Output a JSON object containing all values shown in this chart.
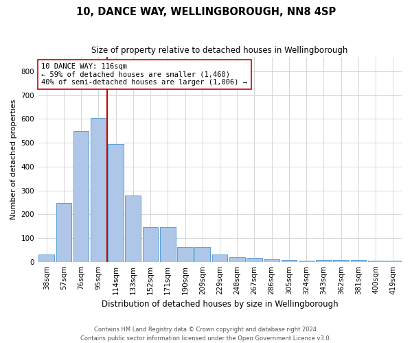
{
  "title": "10, DANCE WAY, WELLINGBOROUGH, NN8 4SP",
  "subtitle": "Size of property relative to detached houses in Wellingborough",
  "xlabel": "Distribution of detached houses by size in Wellingborough",
  "ylabel": "Number of detached properties",
  "categories": [
    "38sqm",
    "57sqm",
    "76sqm",
    "95sqm",
    "114sqm",
    "133sqm",
    "152sqm",
    "171sqm",
    "190sqm",
    "209sqm",
    "229sqm",
    "248sqm",
    "267sqm",
    "286sqm",
    "305sqm",
    "324sqm",
    "343sqm",
    "362sqm",
    "381sqm",
    "400sqm",
    "419sqm"
  ],
  "values": [
    32,
    247,
    548,
    605,
    493,
    277,
    147,
    147,
    62,
    62,
    30,
    18,
    15,
    12,
    8,
    5,
    8,
    8,
    8,
    4,
    4
  ],
  "bar_color": "#aec6e8",
  "bar_edge_color": "#5a9fd4",
  "highlight_line_index": 4,
  "highlight_line_color": "#cc0000",
  "annotation_text": "10 DANCE WAY: 116sqm\n← 59% of detached houses are smaller (1,460)\n40% of semi-detached houses are larger (1,006) →",
  "annotation_box_color": "#ffffff",
  "annotation_box_edge": "#cc0000",
  "ylim": [
    0,
    860
  ],
  "yticks": [
    0,
    100,
    200,
    300,
    400,
    500,
    600,
    700,
    800
  ],
  "footer_line1": "Contains HM Land Registry data © Crown copyright and database right 2024.",
  "footer_line2": "Contains public sector information licensed under the Open Government Licence v3.0.",
  "bg_color": "#ffffff",
  "grid_color": "#d0d0d0",
  "title_fontsize": 10.5,
  "subtitle_fontsize": 8.5,
  "ylabel_fontsize": 8,
  "xlabel_fontsize": 8.5,
  "tick_fontsize": 7.5,
  "footer_fontsize": 6,
  "ann_fontsize": 7.5
}
